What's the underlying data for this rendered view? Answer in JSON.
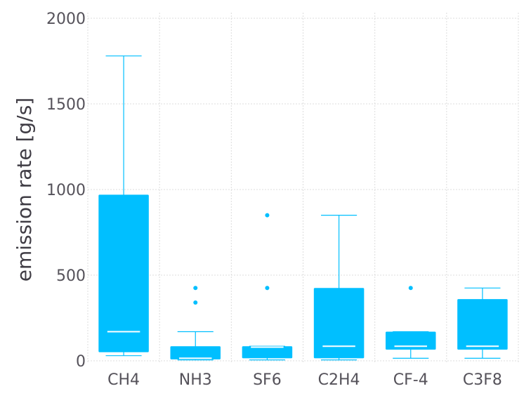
{
  "chart_data": {
    "type": "box",
    "title": "",
    "xlabel": "",
    "ylabel": "emission rate [g/s]",
    "ylim": [
      -20,
      2040
    ],
    "yticks": [
      0,
      500,
      1000,
      1500,
      2000
    ],
    "grid": true,
    "legend": "none",
    "color": "#00bfff",
    "median_color": "#ffffff",
    "categories": [
      "CH4",
      "NH3",
      "SF6",
      "C2H4",
      "CF-4",
      "C3F8"
    ],
    "boxes": [
      {
        "category": "CH4",
        "whisker_low": 30,
        "q1": 50,
        "median": 170,
        "q3": 970,
        "whisker_high": 1780,
        "outliers": []
      },
      {
        "category": "NH3",
        "whisker_low": 5,
        "q1": 8,
        "median": 15,
        "q3": 85,
        "whisker_high": 170,
        "outliers": [
          340,
          425
        ]
      },
      {
        "category": "SF6",
        "whisker_low": 5,
        "q1": 15,
        "median": 80,
        "q3": 85,
        "whisker_high": 85,
        "outliers": [
          425,
          850
        ]
      },
      {
        "category": "C2H4",
        "whisker_low": 5,
        "q1": 15,
        "median": 85,
        "q3": 425,
        "whisker_high": 850,
        "outliers": []
      },
      {
        "category": "CF-4",
        "whisker_low": 15,
        "q1": 65,
        "median": 85,
        "q3": 170,
        "whisker_high": 170,
        "outliers": [
          425
        ]
      },
      {
        "category": "C3F8",
        "whisker_low": 15,
        "q1": 65,
        "median": 85,
        "q3": 360,
        "whisker_high": 425,
        "outliers": []
      }
    ]
  }
}
